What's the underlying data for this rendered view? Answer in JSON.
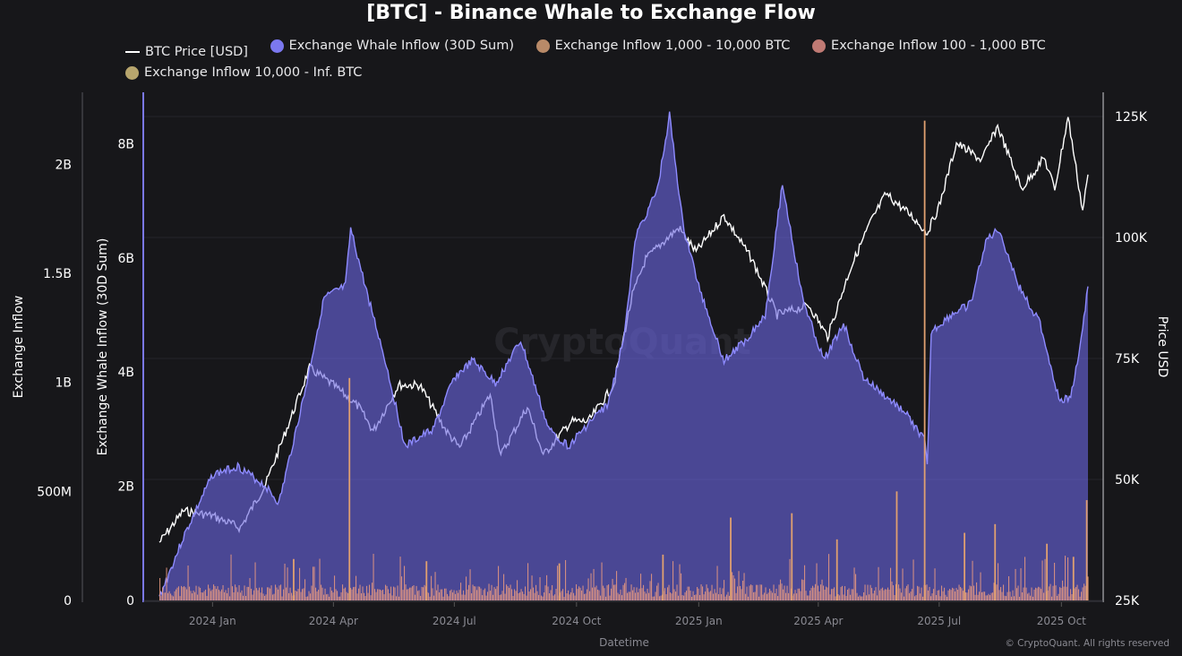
{
  "chart_data": {
    "type": "area",
    "title": "[BTC] - Binance Whale to Exchange Flow",
    "xlabel": "Datetime",
    "x_range": [
      "2023-11-22",
      "2025-10-21"
    ],
    "x_ticks": [
      "2024 Jan",
      "2024 Apr",
      "2024 Jul",
      "2024 Oct",
      "2025 Jan",
      "2025 Apr",
      "2025 Jul",
      "2025 Oct"
    ],
    "x_tick_dates": [
      "2024-01-01",
      "2024-04-01",
      "2024-07-01",
      "2024-10-01",
      "2025-01-01",
      "2025-04-01",
      "2025-07-01",
      "2025-10-01"
    ],
    "axes": {
      "left_outer": {
        "label": "Exchange Inflow",
        "range": [
          0,
          2330000000
        ],
        "ticks": [
          "0",
          "500M",
          "1B",
          "1.5B",
          "2B"
        ],
        "tick_values": [
          0,
          500000000,
          1000000000,
          1500000000,
          2000000000
        ]
      },
      "left_inner": {
        "label": "Exchange Whale Inflow (30D Sum)",
        "range": [
          0,
          8900000000
        ],
        "ticks": [
          "0",
          "2B",
          "4B",
          "6B",
          "8B"
        ],
        "tick_values": [
          0,
          2000000000,
          4000000000,
          6000000000,
          8000000000
        ]
      },
      "right": {
        "label": "Price USD",
        "range": [
          25000,
          130000
        ],
        "ticks": [
          "25K",
          "50K",
          "75K",
          "100K",
          "125K"
        ],
        "tick_values": [
          25000,
          50000,
          75000,
          100000,
          125000
        ]
      }
    },
    "grid": true,
    "legend_position": "top",
    "watermark": "CryptoQuant",
    "copyright": "© CryptoQuant. All rights reserved",
    "series": [
      {
        "name": "BTC Price [USD]",
        "type": "line",
        "axis": "right",
        "color": "#ffffff",
        "points": [
          [
            "2023-11-22",
            37000
          ],
          [
            "2023-12-10",
            43500
          ],
          [
            "2024-01-01",
            42500
          ],
          [
            "2024-01-22",
            40000
          ],
          [
            "2024-02-10",
            49000
          ],
          [
            "2024-02-28",
            62000
          ],
          [
            "2024-03-14",
            73000
          ],
          [
            "2024-04-01",
            69500
          ],
          [
            "2024-04-20",
            65000
          ],
          [
            "2024-05-01",
            60000
          ],
          [
            "2024-05-20",
            69500
          ],
          [
            "2024-06-05",
            69500
          ],
          [
            "2024-06-25",
            60000
          ],
          [
            "2024-07-05",
            56500
          ],
          [
            "2024-07-28",
            67500
          ],
          [
            "2024-08-05",
            55000
          ],
          [
            "2024-08-25",
            65000
          ],
          [
            "2024-09-06",
            55000
          ],
          [
            "2024-09-27",
            62000
          ],
          [
            "2024-10-10",
            62000
          ],
          [
            "2024-10-29",
            69500
          ],
          [
            "2024-11-12",
            88000
          ],
          [
            "2024-11-22",
            95500
          ],
          [
            "2024-12-05",
            99000
          ],
          [
            "2024-12-17",
            102000
          ],
          [
            "2024-12-30",
            97000
          ],
          [
            "2025-01-20",
            104500
          ],
          [
            "2025-02-10",
            95500
          ],
          [
            "2025-03-01",
            84000
          ],
          [
            "2025-03-25",
            86000
          ],
          [
            "2025-04-08",
            79500
          ],
          [
            "2025-04-25",
            93500
          ],
          [
            "2025-05-10",
            103000
          ],
          [
            "2025-05-22",
            109000
          ],
          [
            "2025-06-10",
            104500
          ],
          [
            "2025-06-22",
            101000
          ],
          [
            "2025-07-01",
            106500
          ],
          [
            "2025-07-14",
            119500
          ],
          [
            "2025-08-02",
            116000
          ],
          [
            "2025-08-14",
            123000
          ],
          [
            "2025-09-01",
            110000
          ],
          [
            "2025-09-18",
            116500
          ],
          [
            "2025-09-26",
            110000
          ],
          [
            "2025-10-06",
            125000
          ],
          [
            "2025-10-17",
            105500
          ],
          [
            "2025-10-21",
            113000
          ]
        ]
      },
      {
        "name": "Exchange Whale Inflow (30D Sum)",
        "type": "area",
        "axis": "left_inner",
        "color": "#7b78f0",
        "points": [
          [
            "2023-11-22",
            50000000
          ],
          [
            "2023-12-10",
            1100000000
          ],
          [
            "2024-01-01",
            2200000000
          ],
          [
            "2024-01-20",
            2350000000
          ],
          [
            "2024-02-10",
            2000000000
          ],
          [
            "2024-02-20",
            1700000000
          ],
          [
            "2024-03-10",
            3600000000
          ],
          [
            "2024-03-25",
            5300000000
          ],
          [
            "2024-04-10",
            5500000000
          ],
          [
            "2024-04-14",
            6500000000
          ],
          [
            "2024-04-25",
            5500000000
          ],
          [
            "2024-05-10",
            4200000000
          ],
          [
            "2024-05-25",
            2700000000
          ],
          [
            "2024-06-15",
            3000000000
          ],
          [
            "2024-07-01",
            3900000000
          ],
          [
            "2024-07-15",
            4200000000
          ],
          [
            "2024-08-01",
            3800000000
          ],
          [
            "2024-08-20",
            4550000000
          ],
          [
            "2024-09-10",
            3000000000
          ],
          [
            "2024-09-25",
            2700000000
          ],
          [
            "2024-10-10",
            3100000000
          ],
          [
            "2024-10-25",
            3450000000
          ],
          [
            "2024-11-05",
            4550000000
          ],
          [
            "2024-11-15",
            6400000000
          ],
          [
            "2024-12-01",
            7200000000
          ],
          [
            "2024-12-10",
            8500000000
          ],
          [
            "2024-12-20",
            6600000000
          ],
          [
            "2025-01-01",
            5500000000
          ],
          [
            "2025-01-20",
            4200000000
          ],
          [
            "2025-02-05",
            4550000000
          ],
          [
            "2025-02-20",
            5000000000
          ],
          [
            "2025-03-05",
            7300000000
          ],
          [
            "2025-03-20",
            5300000000
          ],
          [
            "2025-04-05",
            4200000000
          ],
          [
            "2025-04-20",
            4850000000
          ],
          [
            "2025-05-05",
            3900000000
          ],
          [
            "2025-05-20",
            3600000000
          ],
          [
            "2025-06-05",
            3300000000
          ],
          [
            "2025-06-20",
            2800000000
          ],
          [
            "2025-06-22",
            2350000000
          ],
          [
            "2025-06-25",
            4700000000
          ],
          [
            "2025-07-10",
            5000000000
          ],
          [
            "2025-07-25",
            5200000000
          ],
          [
            "2025-08-05",
            6300000000
          ],
          [
            "2025-08-15",
            6500000000
          ],
          [
            "2025-08-30",
            5500000000
          ],
          [
            "2025-09-15",
            4850000000
          ],
          [
            "2025-09-30",
            3450000000
          ],
          [
            "2025-10-08",
            3600000000
          ],
          [
            "2025-10-15",
            4400000000
          ],
          [
            "2025-10-21",
            5500000000
          ]
        ]
      },
      {
        "name": "Exchange Inflow 1,000 - 10,000 BTC",
        "type": "bar",
        "axis": "left_outer",
        "color": "#b98a68",
        "spikes": [
          [
            "2024-04-13",
            1020000000
          ],
          [
            "2025-06-20",
            2200000000
          ],
          [
            "2025-10-20",
            460000000
          ],
          [
            "2024-12-05",
            210000000
          ],
          [
            "2025-03-12",
            400000000
          ],
          [
            "2025-05-30",
            500000000
          ],
          [
            "2025-08-12",
            350000000
          ],
          [
            "2025-01-25",
            380000000
          ],
          [
            "2024-03-02",
            190000000
          ],
          [
            "2024-06-10",
            180000000
          ],
          [
            "2024-09-18",
            170000000
          ],
          [
            "2025-04-15",
            280000000
          ],
          [
            "2025-07-20",
            310000000
          ],
          [
            "2025-09-20",
            260000000
          ],
          [
            "2025-10-10",
            200000000
          ]
        ]
      },
      {
        "name": "Exchange Inflow 100 - 1,000 BTC",
        "type": "bar",
        "axis": "left_outer",
        "color": "#c07a74"
      },
      {
        "name": "Exchange Inflow 10,000 - Inf. BTC",
        "type": "bar",
        "axis": "left_outer",
        "color": "#b7a56d"
      }
    ]
  }
}
